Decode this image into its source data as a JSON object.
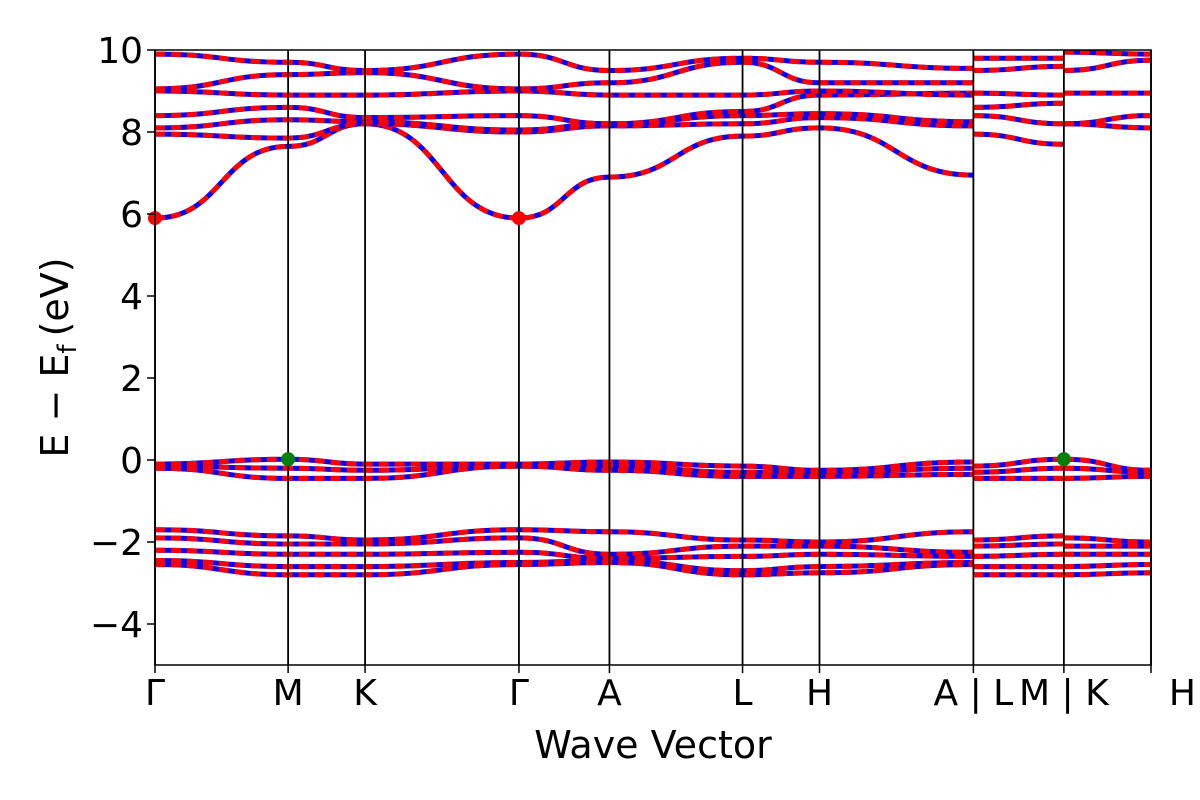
{
  "chart_data": {
    "type": "line",
    "title": "",
    "xlabel": "Wave Vector",
    "ylabel": "E − E",
    "ylabel_sub": "f",
    "ylabel_unit": "(eV)",
    "ylim": [
      -5,
      10
    ],
    "yticks": [
      -4,
      -2,
      0,
      2,
      4,
      6,
      8,
      10
    ],
    "ytick_labels": [
      "−4",
      "−2",
      "0",
      "2",
      "4",
      "6",
      "8",
      "10"
    ],
    "x_segments": [
      {
        "label": "Γ",
        "x": 0.0
      },
      {
        "label": "M",
        "x": 0.628
      },
      {
        "label": "K",
        "x": 0.991
      },
      {
        "label": "Γ",
        "x": 1.717
      },
      {
        "label": "A",
        "x": 2.144
      },
      {
        "label": "L",
        "x": 2.772
      },
      {
        "label": "H",
        "x": 3.135
      },
      {
        "label": "A | L",
        "x": 3.861
      },
      {
        "label": "M | K",
        "x": 4.288
      },
      {
        "label": "H",
        "x": 4.699
      }
    ],
    "xlim": [
      0,
      4.699
    ],
    "series_colors": {
      "spin_up": "#0000ff",
      "spin_down": "#ff0000"
    },
    "markers": [
      {
        "kind": "cbm",
        "x": 0.0,
        "y": 5.9,
        "color": "#ff0000"
      },
      {
        "kind": "cbm",
        "x": 1.717,
        "y": 5.9,
        "color": "#ff0000"
      },
      {
        "kind": "vbm",
        "x": 0.628,
        "y": 0.02,
        "color": "#008000"
      },
      {
        "kind": "vbm",
        "x": 4.288,
        "y": 0.02,
        "color": "#008000"
      }
    ],
    "bands": [
      {
        "name": "",
        "x": [
          0,
          0.628,
          0.991,
          1.717,
          2.144,
          2.772,
          3.135,
          3.861
        ],
        "y": [
          5.9,
          7.65,
          8.2,
          5.9,
          6.9,
          7.9,
          8.1,
          6.95
        ]
      },
      {
        "name": "",
        "x": [
          0,
          0.628,
          0.991,
          1.717,
          2.144,
          2.772,
          3.135,
          3.861
        ],
        "y": [
          7.95,
          7.85,
          8.2,
          8.0,
          8.15,
          8.2,
          8.35,
          8.15
        ]
      },
      {
        "name": "",
        "x": [
          0,
          0.628,
          0.991,
          1.717,
          2.144,
          2.772,
          3.135,
          3.861
        ],
        "y": [
          8.1,
          8.3,
          8.25,
          8.05,
          8.2,
          8.4,
          8.45,
          8.25
        ]
      },
      {
        "name": "",
        "x": [
          0,
          0.628,
          0.991,
          1.717,
          2.144,
          2.772,
          3.135,
          3.861
        ],
        "y": [
          8.4,
          8.6,
          8.35,
          8.4,
          8.2,
          8.5,
          8.9,
          8.95
        ]
      },
      {
        "name": "",
        "x": [
          0,
          0.628,
          0.991,
          1.717,
          2.144,
          2.772,
          3.135,
          3.861
        ],
        "y": [
          9.0,
          8.9,
          8.9,
          9.0,
          8.9,
          8.9,
          9.0,
          8.9
        ]
      },
      {
        "name": "",
        "x": [
          0,
          0.628,
          0.991,
          1.717,
          2.144,
          2.772,
          3.135,
          3.861
        ],
        "y": [
          9.05,
          9.4,
          9.45,
          9.05,
          9.2,
          9.7,
          9.2,
          9.2
        ]
      },
      {
        "name": "",
        "x": [
          0,
          0.628,
          0.991,
          1.717,
          2.144,
          2.772,
          3.135,
          3.861
        ],
        "y": [
          9.9,
          9.7,
          9.5,
          9.9,
          9.5,
          9.8,
          9.7,
          9.55
        ]
      },
      {
        "name": "",
        "x": [
          0,
          0.628,
          0.991,
          1.717,
          2.144,
          2.772,
          3.135,
          3.861
        ],
        "y": [
          -0.1,
          0.02,
          -0.1,
          -0.1,
          -0.05,
          -0.15,
          -0.25,
          -0.05
        ]
      },
      {
        "name": "",
        "x": [
          0,
          0.628,
          0.991,
          1.717,
          2.144,
          2.772,
          3.135,
          3.861
        ],
        "y": [
          -0.15,
          -0.2,
          -0.25,
          -0.15,
          -0.15,
          -0.3,
          -0.3,
          -0.2
        ]
      },
      {
        "name": "",
        "x": [
          0,
          0.628,
          0.991,
          1.717,
          2.144,
          2.772,
          3.135,
          3.861
        ],
        "y": [
          -0.2,
          -0.45,
          -0.45,
          -0.15,
          -0.25,
          -0.4,
          -0.4,
          -0.35
        ]
      },
      {
        "name": "",
        "x": [
          0,
          0.628,
          0.991,
          1.717,
          2.144,
          2.772,
          3.135,
          3.861
        ],
        "y": [
          -1.7,
          -1.85,
          -1.95,
          -1.7,
          -1.75,
          -1.95,
          -2.0,
          -1.75
        ]
      },
      {
        "name": "",
        "x": [
          0,
          0.628,
          0.991,
          1.717,
          2.144,
          2.772,
          3.135,
          3.861
        ],
        "y": [
          -1.9,
          -2.05,
          -2.05,
          -1.9,
          -2.3,
          -2.1,
          -2.1,
          -2.25
        ]
      },
      {
        "name": "",
        "x": [
          0,
          0.628,
          0.991,
          1.717,
          2.144,
          2.772,
          3.135,
          3.861
        ],
        "y": [
          -2.2,
          -2.3,
          -2.3,
          -2.25,
          -2.4,
          -2.35,
          -2.3,
          -2.35
        ]
      },
      {
        "name": "",
        "x": [
          0,
          0.628,
          0.991,
          1.717,
          2.144,
          2.772,
          3.135,
          3.861
        ],
        "y": [
          -2.45,
          -2.6,
          -2.6,
          -2.5,
          -2.45,
          -2.7,
          -2.6,
          -2.5
        ]
      },
      {
        "name": "",
        "x": [
          0,
          0.628,
          0.991,
          1.717,
          2.144,
          2.772,
          3.135,
          3.861
        ],
        "y": [
          -2.55,
          -2.8,
          -2.8,
          -2.55,
          -2.5,
          -2.8,
          -2.75,
          -2.55
        ]
      },
      {
        "name": "",
        "x": [
          3.861,
          4.288
        ],
        "y": [
          9.8,
          9.8
        ]
      },
      {
        "name": "",
        "x": [
          3.861,
          4.288
        ],
        "y": [
          9.5,
          9.6
        ]
      },
      {
        "name": "",
        "x": [
          3.861,
          4.288
        ],
        "y": [
          8.95,
          8.9
        ]
      },
      {
        "name": "",
        "x": [
          3.861,
          4.288
        ],
        "y": [
          8.6,
          8.7
        ]
      },
      {
        "name": "",
        "x": [
          3.861,
          4.288
        ],
        "y": [
          8.4,
          8.2
        ]
      },
      {
        "name": "",
        "x": [
          3.861,
          4.288
        ],
        "y": [
          7.95,
          7.7
        ]
      },
      {
        "name": "",
        "x": [
          3.861,
          4.288
        ],
        "y": [
          -0.15,
          0.02
        ]
      },
      {
        "name": "",
        "x": [
          3.861,
          4.288
        ],
        "y": [
          -0.3,
          -0.2
        ]
      },
      {
        "name": "",
        "x": [
          3.861,
          4.288
        ],
        "y": [
          -0.45,
          -0.45
        ]
      },
      {
        "name": "",
        "x": [
          3.861,
          4.288
        ],
        "y": [
          -1.95,
          -1.85
        ]
      },
      {
        "name": "",
        "x": [
          3.861,
          4.288
        ],
        "y": [
          -2.1,
          -2.05
        ]
      },
      {
        "name": "",
        "x": [
          3.861,
          4.288
        ],
        "y": [
          -2.35,
          -2.3
        ]
      },
      {
        "name": "",
        "x": [
          3.861,
          4.288
        ],
        "y": [
          -2.6,
          -2.6
        ]
      },
      {
        "name": "",
        "x": [
          3.861,
          4.288
        ],
        "y": [
          -2.8,
          -2.8
        ]
      },
      {
        "name": "",
        "x": [
          4.288,
          4.699
        ],
        "y": [
          9.95,
          9.9
        ]
      },
      {
        "name": "",
        "x": [
          4.288,
          4.699
        ],
        "y": [
          9.5,
          9.75
        ]
      },
      {
        "name": "",
        "x": [
          4.288,
          4.699
        ],
        "y": [
          8.95,
          8.95
        ]
      },
      {
        "name": "",
        "x": [
          4.288,
          4.699
        ],
        "y": [
          8.2,
          8.1
        ]
      },
      {
        "name": "",
        "x": [
          4.288,
          4.699
        ],
        "y": [
          8.2,
          8.4
        ]
      },
      {
        "name": "",
        "x": [
          4.288,
          4.699
        ],
        "y": [
          0.02,
          -0.25
        ]
      },
      {
        "name": "",
        "x": [
          4.288,
          4.699
        ],
        "y": [
          -0.2,
          -0.3
        ]
      },
      {
        "name": "",
        "x": [
          4.288,
          4.699
        ],
        "y": [
          -0.45,
          -0.4
        ]
      },
      {
        "name": "",
        "x": [
          4.288,
          4.699
        ],
        "y": [
          -1.9,
          -2.0
        ]
      },
      {
        "name": "",
        "x": [
          4.288,
          4.699
        ],
        "y": [
          -2.1,
          -2.1
        ]
      },
      {
        "name": "",
        "x": [
          4.288,
          4.699
        ],
        "y": [
          -2.3,
          -2.3
        ]
      },
      {
        "name": "",
        "x": [
          4.288,
          4.699
        ],
        "y": [
          -2.6,
          -2.55
        ]
      },
      {
        "name": "",
        "x": [
          4.288,
          4.699
        ],
        "y": [
          -2.8,
          -2.75
        ]
      }
    ]
  }
}
